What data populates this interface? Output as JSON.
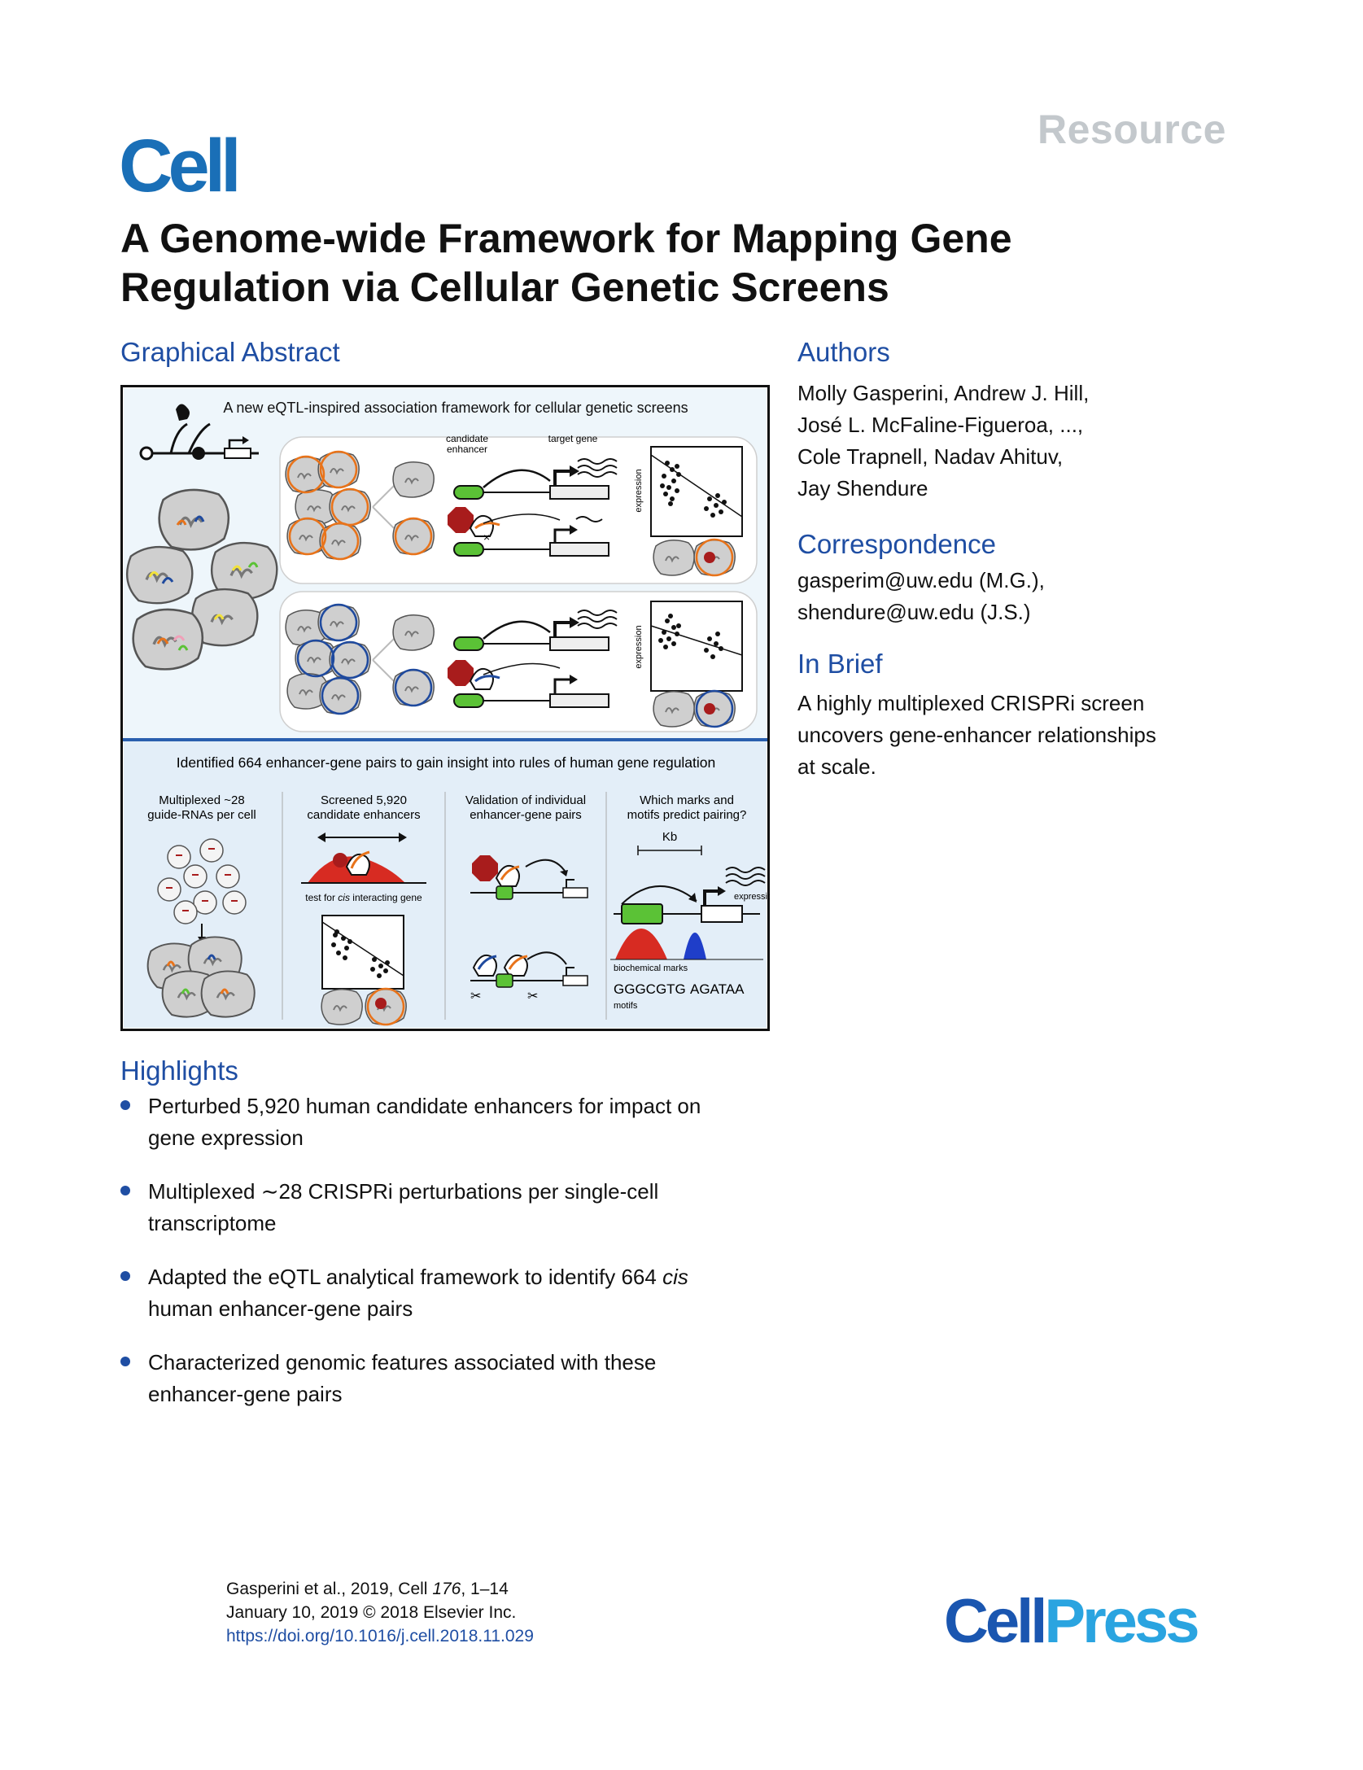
{
  "header": {
    "article_type": "Resource",
    "journal_logo": "Cell",
    "title": "A Genome-wide Framework for Mapping Gene Regulation via Cellular Genetic Screens"
  },
  "graphical_abstract": {
    "heading": "Graphical Abstract",
    "top_caption": "A new eQTL-inspired association framework for cellular genetic screens",
    "candidate_enhancer_label_1": "candidate",
    "candidate_enhancer_label_2": "enhancer",
    "target_gene_label": "target gene",
    "expression_axis_label": "expression",
    "bottom_caption": "Identified 664 enhancer-gene pairs to gain insight into rules of human gene regulation",
    "panel_1_line_1": "Multiplexed ~28",
    "panel_1_line_2": "guide-RNAs per cell",
    "panel_2_line_1": "Screened 5,920",
    "panel_2_line_2": "candidate enhancers",
    "panel_2_test_prefix": "test for ",
    "panel_2_test_italic": "cis",
    "panel_2_test_suffix": " interacting gene",
    "panel_3_line_1": "Validation of individual",
    "panel_3_line_2": "enhancer-gene pairs",
    "panel_4_line_1": "Which marks and",
    "panel_4_line_2": "motifs predict pairing?",
    "panel_4_kb": "Kb",
    "panel_4_expression": "expression",
    "panel_4_biochem": "biochemical marks",
    "panel_4_motif_1": "GGGCGTG",
    "panel_4_motif_2": "AGATAA",
    "panel_4_motifs": "motifs"
  },
  "authors": {
    "heading": "Authors",
    "line_1": "Molly Gasperini, Andrew J. Hill,",
    "line_2": "José L. McFaline-Figueroa, ...,",
    "line_3": "Cole Trapnell, Nadav Ahituv,",
    "line_4": "Jay Shendure"
  },
  "correspondence": {
    "heading": "Correspondence",
    "line_1": "gasperim@uw.edu (M.G.),",
    "line_2": "shendure@uw.edu (J.S.)"
  },
  "in_brief": {
    "heading": "In Brief",
    "line_1": "A highly multiplexed CRISPRi screen",
    "line_2": "uncovers gene-enhancer relationships",
    "line_3": "at scale."
  },
  "highlights": {
    "heading": "Highlights",
    "item_1_line_1": "Perturbed 5,920 human candidate enhancers for impact on",
    "item_1_line_2": "gene expression",
    "item_2_line_1": "Multiplexed ∼28 CRISPRi perturbations per single-cell",
    "item_2_line_2": "transcriptome",
    "item_3_prefix": "Adapted the eQTL analytical framework to identify 664 ",
    "item_3_italic": "cis",
    "item_3_line_2": "human enhancer-gene pairs",
    "item_4_line_1": "Characterized genomic features associated with these",
    "item_4_line_2": "enhancer-gene pairs"
  },
  "footer": {
    "cite_prefix": "Gasperini et al., 2019, Cell ",
    "cite_volume": "176",
    "cite_suffix": ", 1–14",
    "date_line": "January 10, 2019 © 2018 Elsevier Inc.",
    "doi": "https://doi.org/10.1016/j.cell.2018.11.029"
  },
  "cellpress_logo": {
    "part_1": "Cell",
    "part_2": "Press"
  },
  "colors": {
    "heading_blue": "#1f4ea3",
    "cell_logo_blue": "#1a6fb7",
    "resource_gray": "#c3c8cc",
    "enhancer_green": "#5bc236",
    "stop_red": "#a81c1c",
    "orange_guide": "#e8731a",
    "blue_guide": "#1f4a9e",
    "panel_bg": "#eef6fb"
  }
}
